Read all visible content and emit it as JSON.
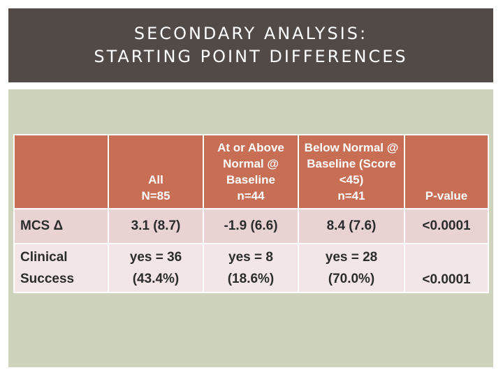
{
  "slide": {
    "title_line1": "SECONDARY ANALYSIS:",
    "title_line2": "STARTING POINT DIFFERENCES"
  },
  "table": {
    "headers": [
      {
        "lines": []
      },
      {
        "lines": [
          "All",
          "N=85"
        ]
      },
      {
        "lines": [
          "At or Above",
          "Normal @",
          "Baseline",
          "n=44"
        ]
      },
      {
        "lines": [
          "Below Normal @",
          "Baseline (Score",
          "<45)",
          "n=41"
        ]
      },
      {
        "lines": [
          "P-value"
        ]
      }
    ],
    "rows": [
      {
        "label": [
          "MCS Δ"
        ],
        "cells": [
          [
            "3.1 (8.7)"
          ],
          [
            "-1.9 (6.6)"
          ],
          [
            "8.4 (7.6)"
          ],
          [
            "<0.0001"
          ]
        ]
      },
      {
        "label": [
          "Clinical",
          "Success"
        ],
        "cells": [
          [
            "yes = 36",
            "(43.4%)"
          ],
          [
            "yes = 8",
            "(18.6%)"
          ],
          [
            "yes = 28",
            "(70.0%)"
          ],
          [
            "<0.0001"
          ]
        ]
      }
    ]
  }
}
